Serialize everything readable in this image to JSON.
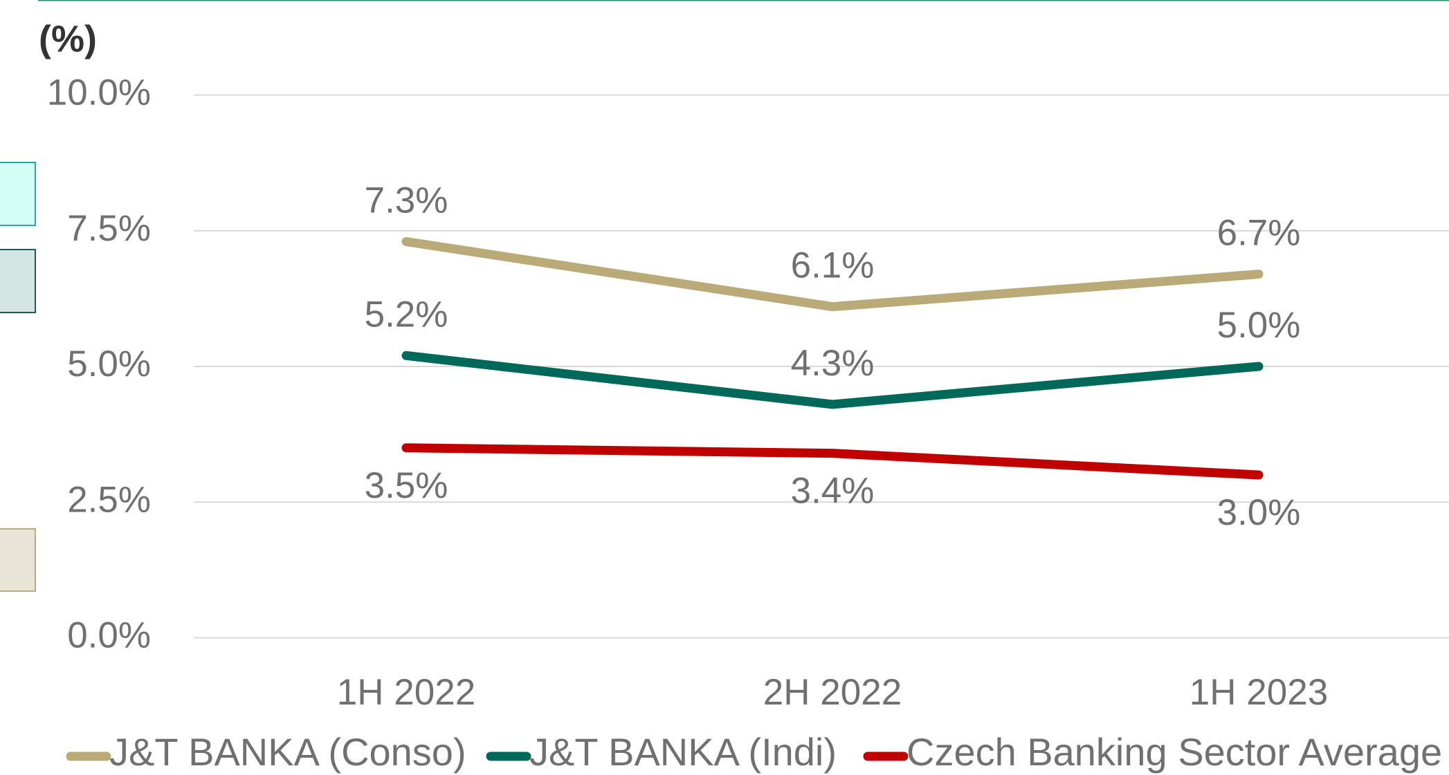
{
  "chart_data": {
    "type": "line",
    "title": "(%)",
    "categories": [
      "1H 2022",
      "2H 2022",
      "1H 2023"
    ],
    "series": [
      {
        "name": "J&T BANKA (Conso)",
        "color": "#b9aa78",
        "values": [
          7.3,
          6.1,
          6.7
        ],
        "value_labels": [
          "7.3%",
          "6.1%",
          "6.7%"
        ]
      },
      {
        "name": "J&T BANKA (Indi)",
        "color": "#00695a",
        "values": [
          5.2,
          4.3,
          5.0
        ],
        "value_labels": [
          "5.2%",
          "4.3%",
          "5.0%"
        ]
      },
      {
        "name": "Czech Banking Sector Average",
        "color": "#c00000",
        "values": [
          3.5,
          3.4,
          3.0
        ],
        "value_labels": [
          "3.5%",
          "3.4%",
          "3.0%"
        ]
      }
    ],
    "ylim": [
      0,
      10
    ],
    "yticks": [
      {
        "value": 0,
        "label": "0.0%"
      },
      {
        "value": 2.5,
        "label": "2.5%"
      },
      {
        "value": 5,
        "label": "5.0%"
      },
      {
        "value": 7.5,
        "label": "7.5%"
      },
      {
        "value": 10,
        "label": "10.0%"
      }
    ],
    "grid": true,
    "legend": "bottom"
  }
}
